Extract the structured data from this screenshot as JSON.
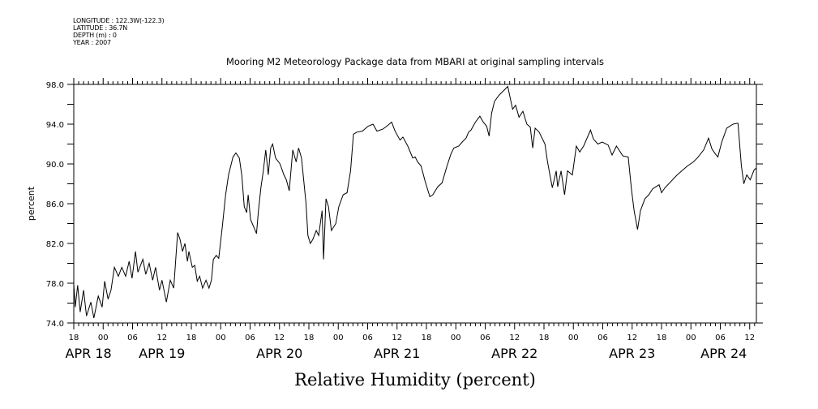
{
  "header": {
    "longitude": "LONGITUDE : 122.3W(-122.3)",
    "latitude": "LATITUDE : 36.7N",
    "depth": "DEPTH (m) : 0",
    "year": "YEAR : 2007"
  },
  "chart_data": {
    "type": "line",
    "title": "Mooring M2 Meteorology Package data from MBARI at original sampling intervals",
    "xlabel": "Relative Humidity (percent)",
    "ylabel": "percent",
    "x_units": "hours since APR 18 18:00",
    "xlim": [
      0,
      139.4
    ],
    "ylim": [
      74,
      98
    ],
    "yticks": [
      74,
      78,
      82,
      86,
      90,
      94,
      98
    ],
    "ytick_labels": [
      "74.0",
      "78.0",
      "82.0",
      "86.0",
      "90.0",
      "94.0",
      "98.0"
    ],
    "xtick_hour_labels": [
      "18",
      "00",
      "06",
      "12"
    ],
    "date_labels": [
      "APR 18",
      "APR 19",
      "APR 20",
      "APR 21",
      "APR 22",
      "APR 23",
      "APR 24"
    ],
    "grid": false,
    "series": [
      {
        "name": "Relative Humidity",
        "color": "#000000",
        "x": [
          0,
          0.3,
          0.8,
          1.3,
          2.0,
          2.6,
          3.5,
          4.1,
          5.0,
          5.8,
          6.3,
          7.0,
          7.6,
          8.3,
          9.1,
          9.8,
          10.6,
          11.3,
          11.9,
          12.6,
          13.1,
          14.1,
          14.7,
          15.4,
          16.1,
          16.7,
          17.5,
          18.0,
          18.9,
          19.7,
          20.4,
          21.2,
          21.7,
          22.2,
          22.7,
          23.2,
          23.5,
          24.2,
          24.7,
          25.2,
          25.7,
          26.3,
          27.0,
          27.6,
          28.1,
          28.5,
          29.1,
          29.6,
          30.3,
          31.0,
          31.6,
          32.5,
          33.1,
          33.8,
          34.3,
          34.8,
          35.3,
          35.6,
          36.1,
          36.8,
          37.3,
          37.7,
          38.2,
          38.7,
          39.2,
          39.7,
          40.2,
          40.6,
          41.2,
          42.1,
          42.9,
          43.4,
          44.0,
          44.7,
          45.4,
          45.9,
          46.5,
          47.4,
          47.8,
          48.3,
          48.8,
          49.5,
          50.0,
          50.7,
          51.0,
          51.5,
          52.0,
          52.6,
          53.5,
          54.1,
          55.0,
          55.8,
          56.5,
          57.1,
          57.8,
          58.9,
          60.1,
          61.1,
          61.9,
          63.1,
          63.9,
          64.9,
          65.6,
          66.6,
          67.2,
          68.2,
          69.2,
          69.7,
          70.2,
          70.9,
          71.7,
          72.7,
          73.3,
          74.3,
          75.2,
          76.2,
          77.0,
          77.6,
          78.6,
          79.3,
          80.1,
          80.6,
          81.1,
          82.0,
          82.9,
          83.6,
          84.3,
          84.8,
          85.3,
          85.9,
          86.8,
          87.6,
          88.6,
          89.6,
          90.2,
          90.9,
          91.7,
          92.5,
          93.2,
          93.7,
          94.2,
          95.0,
          96.2,
          96.7,
          97.2,
          97.7,
          98.5,
          98.8,
          99.5,
          100.2,
          100.8,
          101.8,
          102.6,
          103.3,
          104.1,
          105.5,
          106.1,
          107.0,
          107.9,
          109.1,
          109.9,
          110.8,
          112.1,
          113.2,
          113.9,
          114.4,
          115.1,
          115.7,
          116.6,
          117.4,
          118.2,
          119.5,
          120.0,
          120.7,
          123.2,
          125.3,
          126.5,
          127.3,
          128.6,
          129.6,
          130.3,
          131.0,
          131.5,
          132.3,
          133.3,
          134.6,
          135.6,
          136.3,
          136.8,
          137.4,
          138.1,
          138.9,
          139.4
        ],
        "y": [
          77.9,
          75.6,
          77.8,
          75.1,
          77.3,
          74.7,
          76.1,
          74.5,
          76.7,
          75.6,
          78.2,
          76.4,
          77.3,
          79.6,
          78.7,
          79.6,
          78.7,
          80.2,
          78.5,
          81.2,
          79.1,
          80.4,
          78.9,
          80.0,
          78.3,
          79.6,
          77.3,
          78.3,
          76.1,
          78.3,
          77.5,
          83.1,
          82.4,
          81.2,
          82.0,
          80.2,
          81.2,
          79.6,
          79.8,
          78.2,
          78.7,
          77.5,
          78.3,
          77.5,
          78.3,
          80.4,
          80.8,
          80.5,
          83.6,
          86.9,
          88.9,
          90.7,
          91.1,
          90.6,
          88.9,
          85.7,
          85.1,
          86.9,
          84.4,
          83.6,
          83.0,
          85.3,
          87.6,
          89.3,
          91.4,
          88.9,
          91.6,
          92.0,
          90.6,
          90.0,
          88.9,
          88.4,
          87.3,
          91.4,
          90.2,
          91.6,
          90.6,
          86.1,
          82.8,
          82.0,
          82.4,
          83.3,
          82.8,
          85.3,
          80.4,
          86.5,
          85.7,
          83.3,
          84.0,
          85.7,
          86.9,
          87.1,
          89.3,
          93.0,
          93.2,
          93.3,
          93.8,
          94.0,
          93.3,
          93.5,
          93.8,
          94.2,
          93.3,
          92.4,
          92.7,
          91.8,
          90.6,
          90.7,
          90.2,
          89.8,
          88.3,
          86.7,
          86.9,
          87.7,
          88.1,
          89.8,
          91.0,
          91.6,
          91.8,
          92.2,
          92.6,
          93.2,
          93.4,
          94.2,
          94.8,
          94.2,
          93.8,
          92.8,
          95.1,
          96.3,
          96.9,
          97.3,
          97.8,
          95.5,
          95.9,
          94.7,
          95.3,
          94.0,
          93.7,
          91.6,
          93.6,
          93.2,
          92.0,
          90.3,
          88.9,
          87.6,
          89.3,
          87.7,
          89.3,
          86.9,
          89.3,
          88.9,
          91.8,
          91.2,
          91.8,
          93.4,
          92.5,
          92.0,
          92.2,
          91.9,
          90.9,
          91.8,
          90.8,
          90.7,
          87.3,
          85.3,
          83.4,
          85.3,
          86.5,
          86.9,
          87.5,
          87.9,
          87.1,
          87.6,
          88.9,
          89.8,
          90.2,
          90.6,
          91.4,
          92.6,
          91.5,
          91.0,
          90.7,
          92.2,
          93.6,
          94.0,
          94.1,
          89.8,
          88.0,
          88.9,
          88.4,
          89.4,
          89.6
        ]
      }
    ]
  }
}
